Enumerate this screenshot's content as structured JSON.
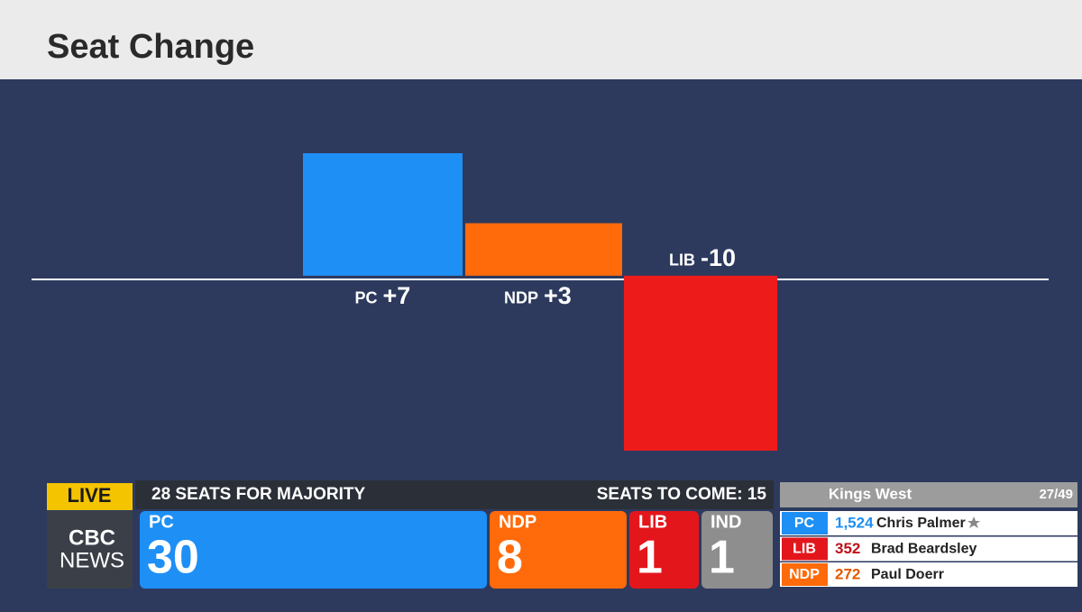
{
  "chart_data": {
    "type": "bar",
    "title": "Seat Change",
    "categories": [
      "PC",
      "NDP",
      "LIB"
    ],
    "values": [
      7,
      3,
      -10
    ],
    "value_labels": [
      "+7",
      "+3",
      "-10"
    ],
    "colors": [
      "#1e8ff5",
      "#ff6a0a",
      "#ee1b1b"
    ]
  },
  "ticker": {
    "live": "LIVE",
    "majority": "28 SEATS FOR MAJORITY",
    "to_come": "SEATS TO COME: 15",
    "logo": [
      "CBC",
      "NEWS"
    ],
    "parties": [
      {
        "name": "PC",
        "seats": "30"
      },
      {
        "name": "NDP",
        "seats": "8"
      },
      {
        "name": "LIB",
        "seats": "1"
      },
      {
        "name": "IND",
        "seats": "1"
      }
    ],
    "riding": {
      "name": "Kings West",
      "progress": "27/49",
      "candidates": [
        {
          "party": "PC",
          "votes": "1,524",
          "name": "Chris Palmer"
        },
        {
          "party": "LIB",
          "votes": "352",
          "name": "Brad Beardsley"
        },
        {
          "party": "NDP",
          "votes": "272",
          "name": "Paul Doerr"
        }
      ]
    }
  }
}
